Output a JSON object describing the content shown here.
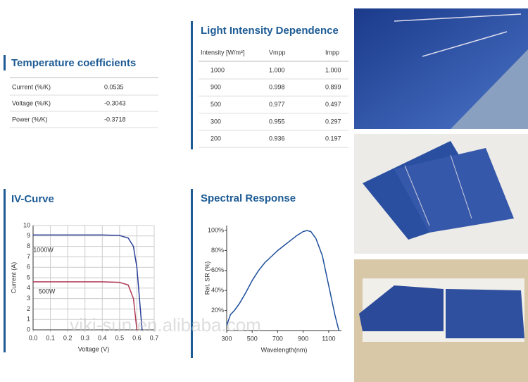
{
  "temperature": {
    "title": "Temperature coefficients",
    "rows": [
      [
        "Current (%/K)",
        "0.0535"
      ],
      [
        "Voltage (%/K)",
        "-0.3043"
      ],
      [
        "Power (%/K)",
        "-0.3718"
      ]
    ]
  },
  "light": {
    "title": "Light Intensity Dependence",
    "header": [
      "Intensity [W/m²]",
      "Vmpp",
      "Impp"
    ],
    "rows": [
      [
        "1000",
        "1.000",
        "1.000"
      ],
      [
        "900",
        "0.998",
        "0.899"
      ],
      [
        "500",
        "0.977",
        "0.497"
      ],
      [
        "300",
        "0.955",
        "0.297"
      ],
      [
        "200",
        "0.936",
        "0.197"
      ]
    ]
  },
  "chart_data": [
    {
      "type": "line",
      "title": "IV-Curve",
      "xlabel": "Voltage (V)",
      "ylabel": "Current (A)",
      "xlim": [
        0,
        0.7
      ],
      "ylim": [
        0,
        10
      ],
      "xticks": [
        {
          "value": 0,
          "label": "0.0"
        },
        0.1,
        0.2,
        0.3,
        0.4,
        0.5,
        0.6,
        0.7
      ],
      "yticks": [
        0,
        1,
        2,
        3,
        4,
        5,
        6,
        7,
        8,
        9,
        10
      ],
      "grid": true,
      "series": [
        {
          "name": "1000W",
          "color": "#2a3f9a",
          "x": [
            0,
            0.1,
            0.2,
            0.3,
            0.4,
            0.5,
            0.55,
            0.58,
            0.6,
            0.62,
            0.63
          ],
          "values": [
            9.1,
            9.1,
            9.1,
            9.1,
            9.1,
            9.05,
            8.8,
            8,
            6,
            2,
            0
          ]
        },
        {
          "name": "500W",
          "color": "#b03a55",
          "x": [
            0,
            0.1,
            0.2,
            0.3,
            0.4,
            0.5,
            0.55,
            0.58,
            0.6
          ],
          "values": [
            4.6,
            4.6,
            4.6,
            4.6,
            4.6,
            4.55,
            4.3,
            3,
            0
          ]
        }
      ]
    },
    {
      "type": "line",
      "title": "Spectral Response",
      "xlabel": "Wavelength(nm)",
      "ylabel": "Rel. SR (%)",
      "xlim": [
        300,
        1200
      ],
      "ylim": [
        0,
        105
      ],
      "xticks": [
        300,
        500,
        700,
        900,
        1100
      ],
      "yticks": [
        {
          "value": 20,
          "label": "20%"
        },
        {
          "value": 40,
          "label": "40%"
        },
        {
          "value": 60,
          "label": "60%"
        },
        {
          "value": 80,
          "label": "80%"
        },
        {
          "value": 100,
          "label": "100%"
        }
      ],
      "grid": false,
      "series": [
        {
          "name": "Rel. SR",
          "color": "#1e4f9c",
          "x": [
            300,
            330,
            360,
            400,
            450,
            500,
            550,
            600,
            650,
            700,
            750,
            800,
            850,
            900,
            930,
            960,
            1000,
            1050,
            1100,
            1150,
            1180
          ],
          "values": [
            5,
            16,
            20,
            27,
            38,
            50,
            60,
            68,
            74,
            80,
            85,
            90,
            95,
            99,
            100,
            99,
            92,
            75,
            45,
            15,
            0
          ]
        }
      ]
    }
  ],
  "watermark": "viki-sun.en.alibaba.com"
}
